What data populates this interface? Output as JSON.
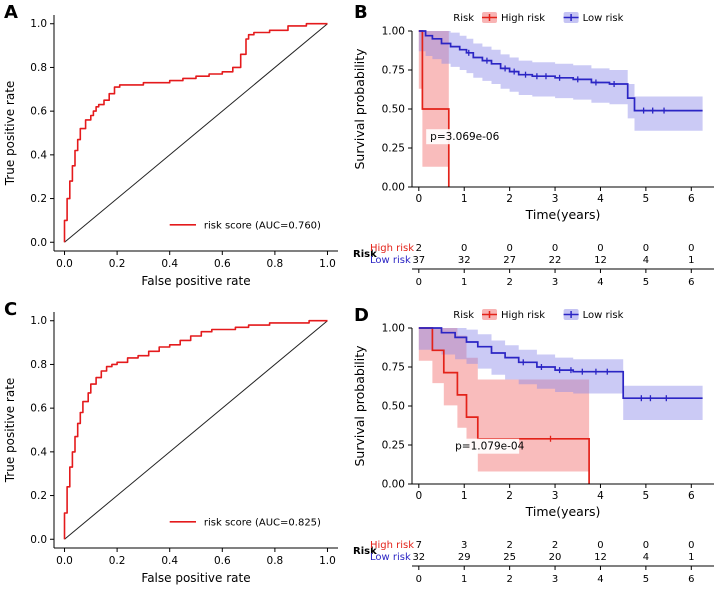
{
  "panels": {
    "A": {
      "label": "A"
    },
    "B": {
      "label": "B"
    },
    "C": {
      "label": "C"
    },
    "D": {
      "label": "D"
    }
  },
  "colors": {
    "roc_curve": "#e41a1c",
    "diagonal": "#222222",
    "high_risk_line": "#e32219",
    "high_risk_band": "#f26a6a",
    "low_risk_line": "#2b25c4",
    "low_risk_band": "#8b8ae8"
  },
  "chart_data": [
    {
      "id": "A",
      "type": "line",
      "chart": "roc",
      "xlabel": "False positive rate",
      "ylabel": "True positive rate",
      "xlim": [
        0,
        1
      ],
      "ylim": [
        0,
        1
      ],
      "xticks": {
        "values": [
          0,
          0.2,
          0.4,
          0.6,
          0.8,
          1
        ],
        "labels": [
          "0.0",
          "0.2",
          "0.4",
          "0.6",
          "0.8",
          "1.0"
        ]
      },
      "yticks": {
        "values": [
          0,
          0.2,
          0.4,
          0.6,
          0.8,
          1
        ],
        "labels": [
          "0.0",
          "0.2",
          "0.4",
          "0.6",
          "0.8",
          "1.0"
        ]
      },
      "diagonal": true,
      "auc": 0.76,
      "legend": {
        "label": "risk score (AUC=0.760)"
      },
      "color": "#e41a1c",
      "x": [
        0,
        0.01,
        0.02,
        0.03,
        0.04,
        0.05,
        0.06,
        0.08,
        0.1,
        0.11,
        0.12,
        0.13,
        0.15,
        0.17,
        0.19,
        0.21,
        0.25,
        0.3,
        0.35,
        0.4,
        0.45,
        0.5,
        0.55,
        0.6,
        0.64,
        0.67,
        0.69,
        0.7,
        0.72,
        0.78,
        0.85,
        0.92,
        1.0
      ],
      "y": [
        0,
        0.1,
        0.2,
        0.28,
        0.35,
        0.42,
        0.47,
        0.52,
        0.56,
        0.58,
        0.6,
        0.62,
        0.63,
        0.65,
        0.68,
        0.71,
        0.72,
        0.72,
        0.73,
        0.73,
        0.74,
        0.75,
        0.76,
        0.77,
        0.78,
        0.8,
        0.86,
        0.93,
        0.95,
        0.96,
        0.97,
        0.99,
        1.0
      ]
    },
    {
      "id": "B",
      "type": "line",
      "chart": "km",
      "xlabel": "Time(years)",
      "ylabel": "Survival probability",
      "xlim": [
        0,
        6
      ],
      "ylim": [
        0,
        1
      ],
      "xticks": {
        "values": [
          0,
          1,
          2,
          3,
          4,
          5,
          6
        ],
        "labels": [
          "0",
          "1",
          "2",
          "3",
          "4",
          "5",
          "6"
        ]
      },
      "yticks": {
        "values": [
          0,
          0.25,
          0.5,
          0.75,
          1
        ],
        "labels": [
          "0.00",
          "0.25",
          "0.50",
          "0.75",
          "1.00"
        ]
      },
      "legend_title": "Risk",
      "p_value": "p=3.069e-06",
      "p_pos": {
        "t": 0.25,
        "s": 0.3
      },
      "series": [
        {
          "name": "High risk",
          "color": "#e32219",
          "fill": "#f26a6a",
          "t": [
            0,
            0.08,
            0.6,
            0.66
          ],
          "s": [
            1,
            0.5,
            0.5,
            0
          ],
          "ci_up": 0.5,
          "ci_dn": 0.37,
          "censor_t": [],
          "censor_s": []
        },
        {
          "name": "Low risk",
          "color": "#2b25c4",
          "fill": "#8b8ae8",
          "t": [
            0,
            0.15,
            0.3,
            0.5,
            0.7,
            0.9,
            1.05,
            1.2,
            1.4,
            1.6,
            1.8,
            2.0,
            2.2,
            2.5,
            3.0,
            3.4,
            3.8,
            4.2,
            4.6,
            4.75,
            6.25
          ],
          "s": [
            1,
            0.97,
            0.95,
            0.92,
            0.9,
            0.88,
            0.86,
            0.83,
            0.81,
            0.79,
            0.76,
            0.74,
            0.72,
            0.71,
            0.7,
            0.69,
            0.67,
            0.66,
            0.57,
            0.49,
            0.49
          ],
          "ci_up": 0.09,
          "ci_dn": 0.13,
          "censor_t": [
            1.1,
            1.5,
            1.9,
            2.1,
            2.35,
            2.6,
            2.8,
            3.1,
            3.5,
            3.9,
            4.3,
            4.95,
            5.15,
            5.4
          ],
          "censor_s": [
            0.86,
            0.81,
            0.76,
            0.74,
            0.72,
            0.71,
            0.71,
            0.7,
            0.69,
            0.67,
            0.66,
            0.49,
            0.49,
            0.49
          ]
        }
      ],
      "risk_table": {
        "label": "Risk",
        "times": [
          0,
          1,
          2,
          3,
          4,
          5,
          6
        ],
        "rows": [
          {
            "label": "High risk",
            "color": "#e32219",
            "counts": [
              2,
              0,
              0,
              0,
              0,
              0,
              0
            ]
          },
          {
            "label": "Low risk",
            "color": "#2b25c4",
            "counts": [
              37,
              32,
              27,
              22,
              12,
              4,
              1
            ]
          }
        ]
      }
    },
    {
      "id": "C",
      "type": "line",
      "chart": "roc",
      "xlabel": "False positive rate",
      "ylabel": "True positive rate",
      "xlim": [
        0,
        1
      ],
      "ylim": [
        0,
        1
      ],
      "xticks": {
        "values": [
          0,
          0.2,
          0.4,
          0.6,
          0.8,
          1
        ],
        "labels": [
          "0.0",
          "0.2",
          "0.4",
          "0.6",
          "0.8",
          "1.0"
        ]
      },
      "yticks": {
        "values": [
          0,
          0.2,
          0.4,
          0.6,
          0.8,
          1
        ],
        "labels": [
          "0.0",
          "0.2",
          "0.4",
          "0.6",
          "0.8",
          "1.0"
        ]
      },
      "diagonal": true,
      "auc": 0.825,
      "legend": {
        "label": "risk score (AUC=0.825)"
      },
      "color": "#e41a1c",
      "x": [
        0,
        0.01,
        0.02,
        0.03,
        0.04,
        0.05,
        0.06,
        0.07,
        0.09,
        0.1,
        0.12,
        0.14,
        0.16,
        0.18,
        0.2,
        0.24,
        0.28,
        0.32,
        0.36,
        0.4,
        0.44,
        0.48,
        0.52,
        0.56,
        0.6,
        0.65,
        0.7,
        0.78,
        0.86,
        0.93,
        1.0
      ],
      "y": [
        0,
        0.12,
        0.24,
        0.33,
        0.4,
        0.47,
        0.53,
        0.58,
        0.63,
        0.67,
        0.71,
        0.74,
        0.77,
        0.79,
        0.8,
        0.81,
        0.83,
        0.84,
        0.86,
        0.88,
        0.89,
        0.91,
        0.93,
        0.95,
        0.96,
        0.96,
        0.97,
        0.98,
        0.99,
        0.99,
        1.0
      ]
    },
    {
      "id": "D",
      "type": "line",
      "chart": "km",
      "xlabel": "Time(years)",
      "ylabel": "Survival probability",
      "xlim": [
        0,
        6
      ],
      "ylim": [
        0,
        1
      ],
      "xticks": {
        "values": [
          0,
          1,
          2,
          3,
          4,
          5,
          6
        ],
        "labels": [
          "0",
          "1",
          "2",
          "3",
          "4",
          "5",
          "6"
        ]
      },
      "yticks": {
        "values": [
          0,
          0.25,
          0.5,
          0.75,
          1
        ],
        "labels": [
          "0.00",
          "0.25",
          "0.50",
          "0.75",
          "1.00"
        ]
      },
      "legend_title": "Risk",
      "p_value": "p=1.079e-04",
      "p_pos": {
        "t": 0.8,
        "s": 0.22
      },
      "series": [
        {
          "name": "High risk",
          "color": "#e32219",
          "fill": "#f26a6a",
          "t": [
            0,
            0.3,
            0.55,
            0.85,
            1.05,
            1.3,
            3.75
          ],
          "s": [
            1,
            0.857,
            0.714,
            0.571,
            0.429,
            0.29,
            0
          ],
          "ci_up": 0.38,
          "ci_dn": 0.21,
          "censor_t": [
            2.9
          ],
          "censor_s": [
            0.29
          ]
        },
        {
          "name": "Low risk",
          "color": "#2b25c4",
          "fill": "#8b8ae8",
          "t": [
            0,
            0.5,
            0.8,
            1.05,
            1.3,
            1.6,
            1.9,
            2.2,
            2.6,
            3.0,
            3.4,
            4.5,
            6.25
          ],
          "s": [
            1,
            0.97,
            0.94,
            0.91,
            0.88,
            0.84,
            0.81,
            0.78,
            0.75,
            0.73,
            0.72,
            0.55,
            0.55
          ],
          "ci_up": 0.08,
          "ci_dn": 0.14,
          "censor_t": [
            2.3,
            2.7,
            3.1,
            3.35,
            3.6,
            3.9,
            4.15,
            4.9,
            5.1,
            5.45
          ],
          "censor_s": [
            0.78,
            0.75,
            0.73,
            0.73,
            0.72,
            0.72,
            0.72,
            0.55,
            0.55,
            0.55
          ]
        }
      ],
      "risk_table": {
        "label": "Risk",
        "times": [
          0,
          1,
          2,
          3,
          4,
          5,
          6
        ],
        "rows": [
          {
            "label": "High risk",
            "color": "#e32219",
            "counts": [
              7,
              3,
              2,
              2,
              0,
              0,
              0
            ]
          },
          {
            "label": "Low risk",
            "color": "#2b25c4",
            "counts": [
              32,
              29,
              25,
              20,
              12,
              4,
              1
            ]
          }
        ]
      }
    }
  ]
}
